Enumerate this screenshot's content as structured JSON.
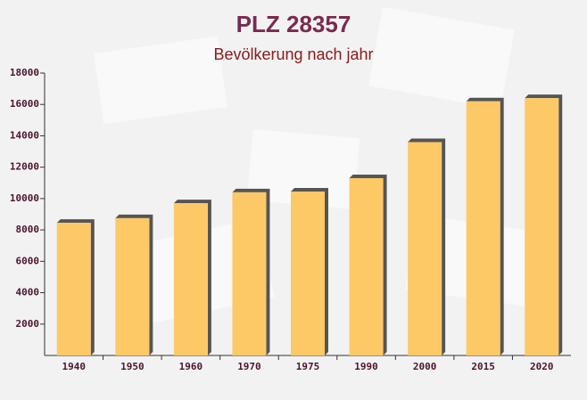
{
  "chart_data": {
    "type": "bar",
    "title": "PLZ 28357",
    "subtitle": "Bevölkerung nach jahr",
    "categories": [
      "1940",
      "1950",
      "1960",
      "1970",
      "1975",
      "1990",
      "2000",
      "2015",
      "2020"
    ],
    "values": [
      8450,
      8750,
      9700,
      10400,
      10450,
      11300,
      13600,
      16200,
      16400
    ],
    "color": "#fdc966",
    "ylim": [
      0,
      18000
    ],
    "yticks": [
      2000,
      4000,
      6000,
      8000,
      10000,
      12000,
      14000,
      16000,
      18000
    ]
  }
}
